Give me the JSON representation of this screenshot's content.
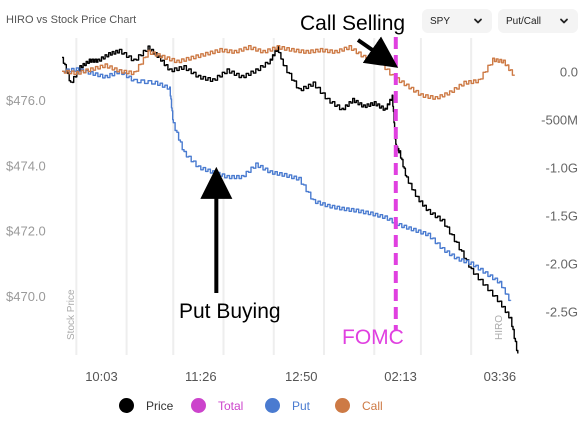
{
  "header": {
    "title": "HIRO vs Stock Price Chart",
    "ticker_select": "SPY",
    "view_select": "Put/Call"
  },
  "colors": {
    "price": "#000000",
    "total": "#cc44cc",
    "put": "#4a7bd0",
    "call": "#cd7a45",
    "fomc_line": "#e040e0",
    "grid": "#eeeeee"
  },
  "chart_data": {
    "type": "line",
    "left_axis": {
      "label": "Stock Price",
      "range": [
        468.2,
        478.2
      ],
      "ticks": [
        476,
        474,
        472,
        470
      ],
      "tick_labels": [
        "$476.0",
        "$474.0",
        "$472.0",
        "$470.0"
      ]
    },
    "right_axis": {
      "label": "HIRO",
      "range": [
        -2.95,
        0.45
      ],
      "ticks": [
        0,
        -0.5,
        -1.0,
        -1.5,
        -2.0,
        -2.5
      ],
      "tick_labels": [
        "0.0",
        "-500M",
        "-1.0G",
        "-1.5G",
        "-2.0G",
        "-2.5G"
      ]
    },
    "x_axis": {
      "range": [
        9.5,
        15.95
      ],
      "ticks": [
        10.05,
        11.4333,
        12.8333,
        14.2167,
        15.6
      ],
      "tick_labels": [
        "10:03",
        "11:26",
        "12:50",
        "02:13",
        "03:36"
      ]
    },
    "series": [
      {
        "name": "Price",
        "axis": "left",
        "x": [
          9.5,
          9.62,
          9.75,
          9.88,
          10.0,
          10.15,
          10.3,
          10.5,
          10.7,
          10.85,
          11.0,
          11.2,
          11.4,
          11.6,
          11.8,
          12.0,
          12.2,
          12.4,
          12.5,
          12.6,
          12.8,
          13.0,
          13.2,
          13.4,
          13.55,
          13.7,
          13.85,
          14.0,
          14.1,
          14.15,
          14.2,
          14.3,
          14.45,
          14.6,
          14.8,
          15.0,
          15.2,
          15.4,
          15.6,
          15.75,
          15.85
        ],
        "y": [
          477.3,
          476.5,
          477.0,
          477.2,
          477.2,
          477.4,
          477.5,
          477.2,
          477.6,
          477.3,
          476.9,
          477.0,
          476.7,
          476.6,
          476.9,
          476.7,
          476.9,
          477.2,
          477.6,
          477.0,
          476.3,
          476.5,
          476.0,
          475.7,
          476.0,
          475.8,
          475.9,
          475.7,
          476.1,
          474.6,
          474.4,
          473.6,
          473.0,
          472.6,
          472.3,
          471.6,
          470.8,
          470.3,
          469.8,
          469.3,
          468.2
        ]
      },
      {
        "name": "Put",
        "axis": "right",
        "x": [
          9.5,
          9.7,
          9.9,
          10.1,
          10.3,
          10.5,
          10.8,
          11.0,
          11.05,
          11.2,
          11.4,
          11.6,
          11.8,
          12.0,
          12.2,
          12.4,
          12.6,
          12.8,
          13.0,
          13.2,
          13.4,
          13.6,
          13.8,
          14.0,
          14.2,
          14.4,
          14.6,
          14.8,
          15.0,
          15.2,
          15.4,
          15.6,
          15.75
        ],
        "y": [
          0.0,
          0.02,
          -0.02,
          -0.06,
          0.0,
          -0.1,
          -0.12,
          -0.18,
          -0.55,
          -0.85,
          -1.0,
          -1.05,
          -1.1,
          -1.1,
          -0.97,
          -1.05,
          -1.08,
          -1.12,
          -1.35,
          -1.4,
          -1.43,
          -1.45,
          -1.48,
          -1.52,
          -1.6,
          -1.65,
          -1.7,
          -1.85,
          -1.95,
          -2.0,
          -2.1,
          -2.2,
          -2.4
        ]
      },
      {
        "name": "Call",
        "axis": "right",
        "x": [
          9.5,
          9.7,
          9.9,
          10.1,
          10.3,
          10.5,
          10.7,
          10.9,
          11.1,
          11.3,
          11.5,
          11.7,
          11.9,
          12.1,
          12.3,
          12.5,
          12.7,
          12.9,
          13.1,
          13.3,
          13.5,
          13.7,
          13.9,
          14.1,
          14.3,
          14.5,
          14.7,
          14.9,
          15.1,
          15.3,
          15.5,
          15.65,
          15.8
        ],
        "y": [
          0.0,
          -0.02,
          0.02,
          0.06,
          0.0,
          -0.02,
          0.2,
          0.15,
          0.1,
          0.14,
          0.18,
          0.22,
          0.2,
          0.25,
          0.2,
          0.25,
          0.22,
          0.2,
          0.22,
          0.2,
          0.25,
          0.15,
          0.12,
          -0.05,
          -0.15,
          -0.25,
          -0.28,
          -0.22,
          -0.12,
          -0.1,
          0.12,
          0.1,
          -0.05
        ]
      }
    ],
    "annotations": [
      {
        "text": "Call Selling",
        "x": 14.0,
        "y": 0.13,
        "axis": "right"
      },
      {
        "text": "Put Buying",
        "x": 11.65,
        "y": -1.16,
        "axis": "right"
      },
      {
        "text": "FOMC",
        "x": 14.15,
        "axis": "right"
      }
    ],
    "legend": {
      "position": "bottom",
      "items": [
        "Price",
        "Total",
        "Put",
        "Call"
      ]
    },
    "grid": true
  }
}
